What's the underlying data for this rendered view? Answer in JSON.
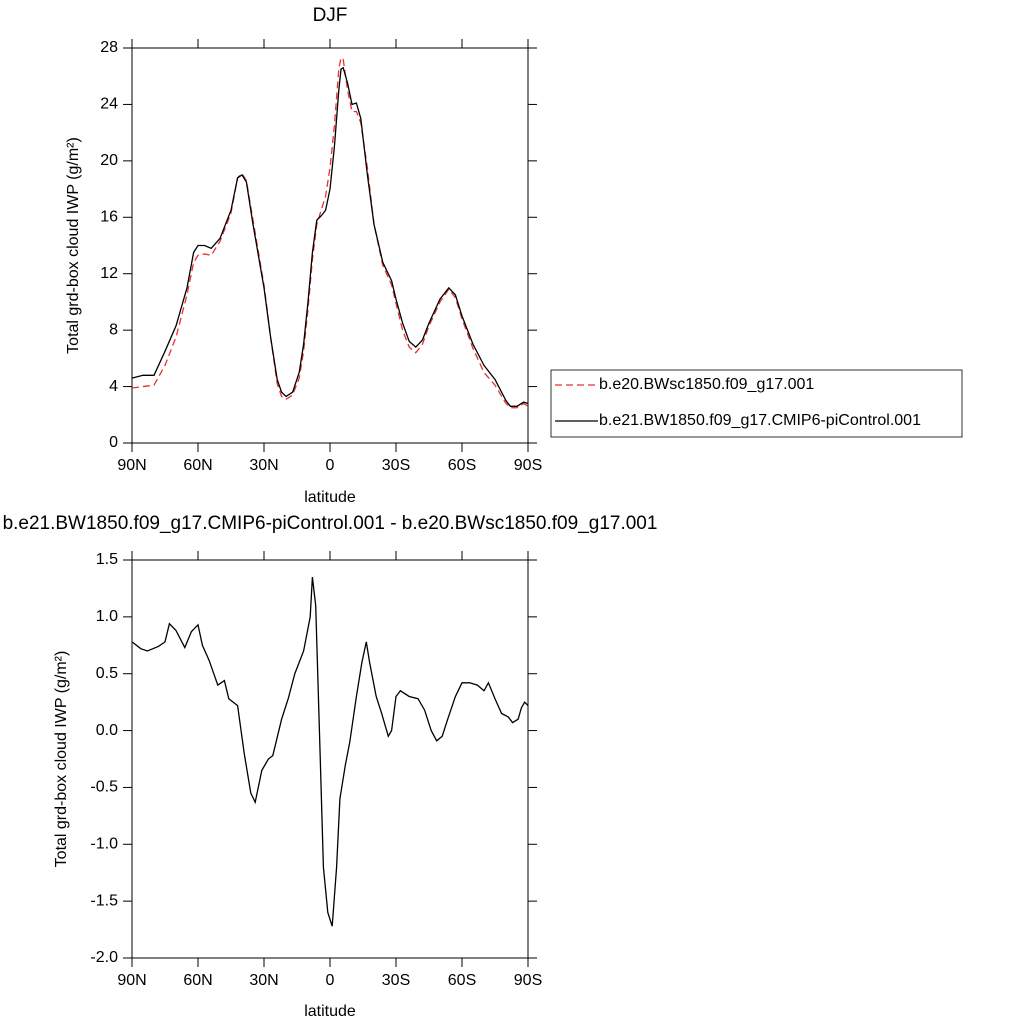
{
  "chart_data": [
    {
      "type": "line",
      "title": "DJF",
      "x_label": "latitude",
      "y_label": "Total grd-box cloud IWP (g/m²)",
      "x": [
        90,
        85,
        80,
        75,
        70,
        65,
        62,
        60,
        57,
        54,
        50,
        45,
        42,
        40,
        38,
        35,
        30,
        27,
        24,
        22,
        20,
        17,
        14,
        12,
        10,
        8,
        6,
        4,
        2,
        0,
        -2,
        -4,
        -5,
        -6,
        -8,
        -10,
        -12,
        -14,
        -17,
        -20,
        -24,
        -28,
        -30,
        -33,
        -36,
        -39,
        -42,
        -45,
        -50,
        -54,
        -57,
        -60,
        -65,
        -70,
        -75,
        -80,
        -82,
        -85,
        -88,
        -90
      ],
      "series": [
        {
          "name": "b.e20.BWsc1850.f09_g17.001",
          "color": "#e8302f",
          "line_style": "dashed",
          "values": [
            3.9,
            4.0,
            4.1,
            5.5,
            7.5,
            10.5,
            12.8,
            13.3,
            13.4,
            13.3,
            14.3,
            16.3,
            18.8,
            19.1,
            18.6,
            15.8,
            11.2,
            7.5,
            4.2,
            3.3,
            3.1,
            3.4,
            4.6,
            6.5,
            9.5,
            13.0,
            15.5,
            16.5,
            17.5,
            19.5,
            22.5,
            26.5,
            27.3,
            27.2,
            25.0,
            23.5,
            23.5,
            22.7,
            19.5,
            15.5,
            12.6,
            11.2,
            9.9,
            8.0,
            6.8,
            6.4,
            7.0,
            8.3,
            10.0,
            10.9,
            10.3,
            8.8,
            6.7,
            5.0,
            4.1,
            2.8,
            2.5,
            2.5,
            2.8,
            2.6
          ]
        },
        {
          "name": "b.e21.BW1850.f09_g17.CMIP6-piControl.001",
          "color": "#000000",
          "line_style": "solid",
          "values": [
            4.6,
            4.8,
            4.8,
            6.5,
            8.3,
            11.0,
            13.5,
            14.0,
            14.0,
            13.8,
            14.5,
            16.5,
            18.8,
            19.0,
            18.5,
            15.5,
            11.0,
            7.5,
            4.5,
            3.6,
            3.3,
            3.6,
            5.0,
            7.0,
            10.0,
            13.5,
            15.8,
            16.1,
            16.5,
            18.0,
            21.0,
            25.0,
            26.5,
            26.6,
            25.5,
            24.0,
            24.1,
            23.0,
            19.0,
            15.5,
            12.8,
            11.5,
            10.2,
            8.5,
            7.2,
            6.8,
            7.3,
            8.5,
            10.2,
            11.0,
            10.5,
            9.0,
            7.0,
            5.5,
            4.5,
            3.0,
            2.6,
            2.6,
            2.9,
            2.8
          ]
        }
      ],
      "xlim": [
        90,
        -90
      ],
      "xticks": [
        {
          "value": 90,
          "label": "90N"
        },
        {
          "value": 60,
          "label": "60N"
        },
        {
          "value": 30,
          "label": "30N"
        },
        0,
        {
          "value": -30,
          "label": "30S"
        },
        {
          "value": -60,
          "label": "60S"
        },
        {
          "value": -90,
          "label": "90S"
        }
      ],
      "ylim": [
        0,
        28
      ],
      "yticks": [
        0,
        4,
        8,
        12,
        16,
        20,
        24,
        28
      ],
      "legend": "right"
    },
    {
      "type": "line",
      "title": "b.e21.BW1850.f09_g17.CMIP6-piControl.001 - b.e20.BWsc1850.f09_g17.001",
      "x_label": "latitude",
      "y_label": "Total grd-box cloud IWP (g/m²)",
      "x": [
        90,
        86,
        83,
        78,
        75,
        73,
        70,
        66,
        63,
        60,
        58,
        55,
        51,
        48,
        46,
        42,
        39,
        36,
        34,
        31,
        28,
        26,
        22,
        19,
        16,
        12,
        9,
        8,
        6.5,
        4.5,
        3,
        1,
        -1,
        -3,
        -4.5,
        -7,
        -9,
        -12,
        -14.5,
        -16.5,
        -18,
        -21,
        -23.5,
        -26.5,
        -28,
        -30,
        -32,
        -36,
        -40,
        -43,
        -46,
        -48.5,
        -51,
        -53.5,
        -57,
        -60,
        -63.5,
        -67,
        -70,
        -72,
        -75,
        -78,
        -81,
        -83,
        -85.5,
        -87,
        -88.5,
        -90
      ],
      "values": [
        0.78,
        0.72,
        0.7,
        0.74,
        0.78,
        0.94,
        0.88,
        0.73,
        0.87,
        0.93,
        0.75,
        0.62,
        0.4,
        0.44,
        0.28,
        0.22,
        -0.2,
        -0.55,
        -0.63,
        -0.35,
        -0.25,
        -0.22,
        0.1,
        0.28,
        0.5,
        0.7,
        1.0,
        1.35,
        1.1,
        -0.2,
        -1.2,
        -1.6,
        -1.72,
        -1.2,
        -0.6,
        -0.3,
        -0.1,
        0.3,
        0.6,
        0.78,
        0.6,
        0.3,
        0.15,
        -0.05,
        0.0,
        0.3,
        0.35,
        0.3,
        0.28,
        0.18,
        0.0,
        -0.09,
        -0.05,
        0.1,
        0.3,
        0.42,
        0.42,
        0.4,
        0.35,
        0.42,
        0.28,
        0.15,
        0.12,
        0.07,
        0.1,
        0.2,
        0.25,
        0.22
      ],
      "color": "#000000",
      "xlim": [
        90,
        -90
      ],
      "xticks": [
        {
          "value": 90,
          "label": "90N"
        },
        {
          "value": 60,
          "label": "60N"
        },
        {
          "value": 30,
          "label": "30N"
        },
        0,
        {
          "value": -30,
          "label": "30S"
        },
        {
          "value": -60,
          "label": "60S"
        },
        {
          "value": -90,
          "label": "90S"
        }
      ],
      "ylim": [
        -2,
        1.5
      ],
      "yticks": [
        {
          "value": -2,
          "label": "-2.0"
        },
        -1.5,
        {
          "value": -1,
          "label": "-1.0"
        },
        -0.5,
        {
          "value": 0,
          "label": "0.0"
        },
        0.5,
        {
          "value": 1,
          "label": "1.0"
        },
        1.5
      ]
    }
  ]
}
